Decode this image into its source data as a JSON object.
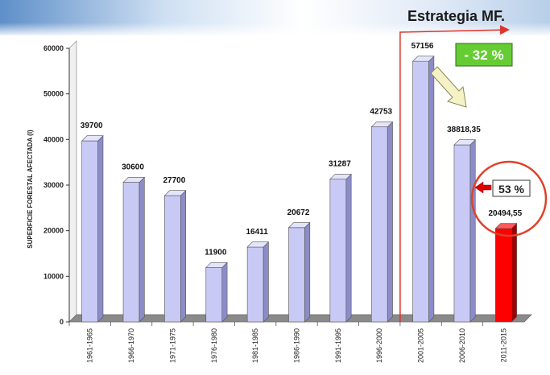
{
  "header": {
    "strategy_title": "Estrategia MF."
  },
  "annotations": {
    "decrease_badge": "- 32 %",
    "increase_badge": "53 %"
  },
  "colors": {
    "bar": "#c9c9f5",
    "bar_side": "#8c8cc8",
    "bar_highlight": "#ff0000",
    "floor": "#8a8a8a",
    "strategy_line": "#e0332a",
    "decrease_badge_bg": "#66cc33",
    "increase_badge_bg": "#ffffff"
  },
  "chart_data": {
    "type": "bar",
    "ylabel": "SUPERFICIE FORESTAL AFECTADA (l)",
    "xlabel": "",
    "ylim": [
      0,
      60000
    ],
    "yticks": [
      0,
      10000,
      20000,
      30000,
      40000,
      50000,
      60000
    ],
    "categories": [
      "1961-1965",
      "1966-1970",
      "1971-1975",
      "1976-1980",
      "1981-1985",
      "1986-1990",
      "1991-1995",
      "1996-2000",
      "2001-2005",
      "2006-2010",
      "2011-2015"
    ],
    "values": [
      39700,
      30600,
      27700,
      11900,
      16411,
      20672,
      31287,
      42753,
      57156,
      38818.35,
      20494.55
    ],
    "labels": [
      "39700",
      "30600",
      "27700",
      "11900",
      "16411",
      "20672",
      "31287",
      "42753",
      "57156",
      "38818,35",
      "20494,55"
    ],
    "highlight_index": 10,
    "grid": false
  }
}
